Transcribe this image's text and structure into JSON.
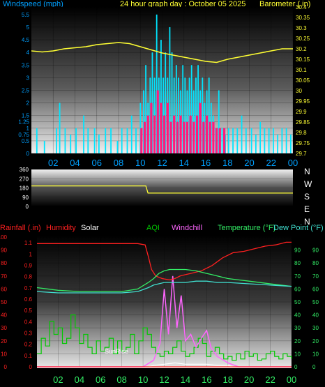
{
  "header": {
    "windspeed_label": "Windspeed (mph)",
    "title": "24 hour graph day : October 05 2025",
    "barometer_label": "Barometer (.in)"
  },
  "compass": [
    "N",
    "W",
    "S",
    "E",
    "N"
  ],
  "lower_header": {
    "rainfall": "Rainfall (.in)",
    "humidity": "Humidity",
    "solar": "Solar",
    "aqi": "AQI",
    "windchill": "Windchill",
    "temperature": "Temperature (°F)",
    "dewpoint": "Dew Point (°F)"
  },
  "annotations": {
    "sunrise": "SunRise"
  },
  "colors": {
    "windspeed": "#00e5ff",
    "gust": "#ff1a7a",
    "barometer": "#ffff33",
    "direction": "#ffff33",
    "rainfall": "#ff2020",
    "humidity": "#ff2020",
    "solar": "#ffffff",
    "aqi": "#00c800",
    "windchill": "#ff66ff",
    "temperature": "#33ee66",
    "dewpoint": "#40e0d0",
    "axis_left": "#00a0ff",
    "axis_right": "#ffff33"
  },
  "chart_data": [
    {
      "type": "bar",
      "title": "24 hour graph day : October 05 2025",
      "xlabel": "",
      "ylabel": "Windspeed (mph)",
      "y2label": "Barometer (.in)",
      "x_ticks": [
        "02",
        "04",
        "06",
        "08",
        "10",
        "12",
        "14",
        "16",
        "18",
        "20",
        "22",
        "00"
      ],
      "y_ticks": [
        "0",
        "0.5",
        "0.75",
        "1",
        "1.25",
        "1.5",
        "2",
        "2.5",
        "3",
        "3.5",
        "4",
        "4.5",
        "5",
        "5.5"
      ],
      "y2_ticks": [
        "29.7",
        "29.75",
        "29.8",
        "29.85",
        "29.9",
        "29.95",
        "30",
        "30.05",
        "30.1",
        "30.15",
        "30.2",
        "30.25",
        "30.3",
        "30.35",
        "30.4"
      ],
      "ylim": [
        0,
        5.8
      ],
      "y2lim": [
        29.7,
        30.4
      ],
      "grid": true,
      "series": [
        {
          "name": "Windspeed (mph)",
          "type": "bar",
          "hours": [
            0.5,
            1.2,
            2.3,
            2.6,
            3.1,
            3.6,
            4.1,
            4.8,
            5.2,
            5.8,
            6.2,
            6.8,
            7.3,
            7.9,
            8.3,
            8.8,
            9.2,
            9.6,
            10.0,
            10.3,
            10.5,
            10.7,
            10.9,
            11.1,
            11.3,
            11.5,
            11.7,
            11.9,
            12.1,
            12.3,
            12.5,
            12.7,
            12.9,
            13.1,
            13.3,
            13.5,
            13.7,
            13.9,
            14.1,
            14.3,
            14.5,
            14.7,
            14.9,
            15.1,
            15.3,
            15.5,
            15.7,
            15.9,
            16.1,
            16.3,
            16.5,
            16.7,
            16.9,
            17.2,
            17.5,
            17.8,
            18.1,
            18.5,
            18.9,
            19.3,
            19.7,
            20.2,
            20.6,
            21.0,
            21.4,
            21.8,
            22.2,
            22.6,
            23.0,
            23.4,
            23.8
          ],
          "values": [
            1,
            0.5,
            1,
            2,
            1,
            0.75,
            1,
            1.5,
            1,
            1,
            0.75,
            1,
            1,
            0.5,
            1,
            1,
            1.5,
            1,
            2,
            2.5,
            3.5,
            2,
            3,
            4,
            3,
            5.5,
            3,
            4.5,
            3,
            4,
            3,
            5,
            4,
            3,
            3.5,
            3,
            2.5,
            3.5,
            3,
            2.5,
            3,
            3.5,
            2.5,
            3,
            3.5,
            2.5,
            3,
            2,
            2.5,
            3,
            2,
            1.5,
            1,
            2.5,
            1,
            0.75,
            1,
            1,
            1,
            1.5,
            1,
            1,
            0.75,
            1.25,
            1,
            1,
            1,
            0.75,
            1,
            1,
            0.75
          ]
        },
        {
          "name": "Gust",
          "type": "bar",
          "hours": [
            10.1,
            10.4,
            10.7,
            11.0,
            11.3,
            11.6,
            11.9,
            12.2,
            12.5,
            12.8,
            13.1,
            13.4,
            13.7,
            14.0,
            14.3,
            14.6,
            14.9,
            15.2,
            15.5,
            15.8,
            16.1,
            16.4,
            16.7,
            17.0,
            17.3,
            17.7
          ],
          "values": [
            1,
            1.25,
            1.5,
            2,
            1.5,
            2.5,
            2,
            1.5,
            2,
            1.25,
            1.5,
            1.25,
            1.5,
            1.25,
            1.25,
            1.5,
            1.25,
            1.5,
            2,
            1.25,
            1.5,
            1.25,
            1.25,
            1,
            1,
            1
          ]
        },
        {
          "name": "Barometer (.in)",
          "type": "line",
          "axis": "right",
          "hours": [
            0,
            1,
            2,
            3,
            4,
            5,
            6,
            7,
            8,
            9,
            10,
            11,
            12,
            13,
            14,
            15,
            16,
            17,
            18,
            19,
            20,
            21,
            22,
            23,
            24
          ],
          "values": [
            30.19,
            30.185,
            30.19,
            30.2,
            30.205,
            30.21,
            30.22,
            30.225,
            30.23,
            30.225,
            30.21,
            30.195,
            30.18,
            30.17,
            30.16,
            30.15,
            30.14,
            30.135,
            30.15,
            30.16,
            30.17,
            30.18,
            30.19,
            30.2,
            30.2
          ]
        }
      ]
    },
    {
      "type": "line",
      "xlabel": "",
      "ylabel": "",
      "compass_labels": [
        "N",
        "W",
        "S",
        "E",
        "N"
      ],
      "y_ticks": [
        "360",
        "270",
        "180",
        "90",
        "0"
      ],
      "ylim": [
        0,
        360
      ],
      "series": [
        {
          "name": "Wind Direction",
          "hours": [
            0,
            10.5,
            10.7,
            24
          ],
          "values": [
            200,
            200,
            130,
            130
          ]
        }
      ]
    },
    {
      "type": "line",
      "y_left_ticks": [
        "0",
        "10",
        "20",
        "30",
        "40",
        "50",
        "60",
        "70",
        "80",
        "90",
        "100"
      ],
      "y_rain_ticks": [
        "0",
        "0.1",
        "0.2",
        "0.3",
        "0.4",
        "0.5",
        "0.6",
        "0.7",
        "0.8",
        "0.9",
        "1",
        "1.1"
      ],
      "y_right_ticks": [
        "0",
        "10",
        "20",
        "30",
        "40",
        "50",
        "60",
        "70",
        "80",
        "90"
      ],
      "y_right2_ticks": [
        "0",
        "10",
        "20",
        "30",
        "40",
        "50",
        "60",
        "70",
        "80",
        "90"
      ],
      "x_ticks": [
        "02",
        "04",
        "06",
        "08",
        "10",
        "12",
        "14",
        "16",
        "18",
        "20",
        "22",
        "00"
      ],
      "series": [
        {
          "name": "Humidity",
          "axis": "left_pct",
          "hours": [
            0,
            2,
            4,
            6,
            8,
            9.5,
            10.2,
            10.5,
            10.8,
            11.2,
            11.8,
            12.5,
            13.0,
            13.5,
            14.0,
            14.5,
            15.5,
            16.5,
            17.5,
            18.5,
            19.5,
            20.5,
            21.5,
            22.5,
            23.5,
            24
          ],
          "values": [
            95,
            95,
            95,
            95,
            95,
            95,
            94,
            85,
            75,
            70,
            68,
            67,
            68,
            70,
            71,
            72,
            74,
            78,
            84,
            88,
            89,
            91,
            93,
            94,
            96,
            96
          ]
        },
        {
          "name": "Temperature (°F)",
          "axis": "right",
          "hours": [
            0,
            2,
            4,
            6,
            8,
            9.5,
            10.5,
            11.0,
            11.5,
            12,
            12.5,
            13,
            14,
            15,
            16,
            16.5,
            17,
            18,
            19,
            20,
            22,
            24
          ],
          "values": [
            61,
            59,
            58,
            58,
            58,
            60,
            65,
            68,
            72,
            74,
            75,
            75,
            75,
            74,
            72,
            71,
            70,
            68,
            67,
            66,
            64,
            62
          ]
        },
        {
          "name": "Dew Point (°F)",
          "axis": "right",
          "hours": [
            0,
            2,
            4,
            6,
            8,
            9.5,
            10.5,
            11,
            12,
            13,
            14,
            15,
            16,
            17,
            18,
            20,
            22,
            24
          ],
          "values": [
            58,
            57,
            57,
            57,
            57,
            58,
            61,
            63,
            65,
            65,
            65,
            66,
            66,
            65,
            65,
            64,
            63,
            62
          ]
        },
        {
          "name": "Windchill",
          "axis": "right",
          "hours": [
            0,
            10,
            11,
            11.6,
            12,
            12.4,
            12.8,
            13.2,
            13.6,
            14,
            14.5,
            15,
            15.5,
            16,
            16.4,
            17,
            18,
            19,
            24
          ],
          "values": [
            0,
            0,
            5,
            18,
            60,
            25,
            70,
            30,
            55,
            20,
            25,
            15,
            22,
            28,
            15,
            8,
            3,
            0,
            0
          ]
        },
        {
          "name": "Solar",
          "axis": "left_pct",
          "hours": [
            0,
            10.5,
            11,
            12,
            13,
            14,
            15,
            16,
            17,
            18,
            18.5,
            24
          ],
          "values": [
            0,
            0,
            1,
            2,
            3,
            2,
            2,
            2,
            1,
            1,
            0,
            0
          ]
        },
        {
          "name": "AQI",
          "axis": "left_pct",
          "type": "step",
          "hours": [
            0,
            0.4,
            0.8,
            1.2,
            1.6,
            2.0,
            2.4,
            2.8,
            3.2,
            3.6,
            4.0,
            4.4,
            4.8,
            5.2,
            5.6,
            6.0,
            6.4,
            6.8,
            7.2,
            7.6,
            8.0,
            8.4,
            8.8,
            9.2,
            9.6,
            10.0,
            10.4,
            10.8,
            11.2,
            11.6,
            12.0,
            12.4,
            12.8,
            13.2,
            13.6,
            14.0,
            14.4,
            14.8,
            15.2,
            15.6,
            16.0,
            16.4,
            16.8,
            17.2,
            17.6,
            18.0,
            18.4,
            18.8,
            19.2,
            19.6,
            20.0,
            20.4,
            20.8,
            21.2,
            21.6,
            22.0,
            22.4,
            22.8,
            23.2,
            23.6,
            24
          ],
          "values": [
            10,
            22,
            16,
            35,
            25,
            30,
            18,
            22,
            40,
            30,
            18,
            25,
            15,
            10,
            20,
            12,
            15,
            22,
            10,
            20,
            12,
            15,
            25,
            10,
            20,
            30,
            25,
            15,
            10,
            8,
            12,
            10,
            15,
            20,
            12,
            8,
            10,
            15,
            22,
            18,
            8,
            12,
            15,
            10,
            6,
            8,
            5,
            10,
            6,
            12,
            8,
            10,
            5,
            6,
            10,
            12,
            8,
            6,
            10,
            8,
            6
          ]
        }
      ]
    }
  ]
}
